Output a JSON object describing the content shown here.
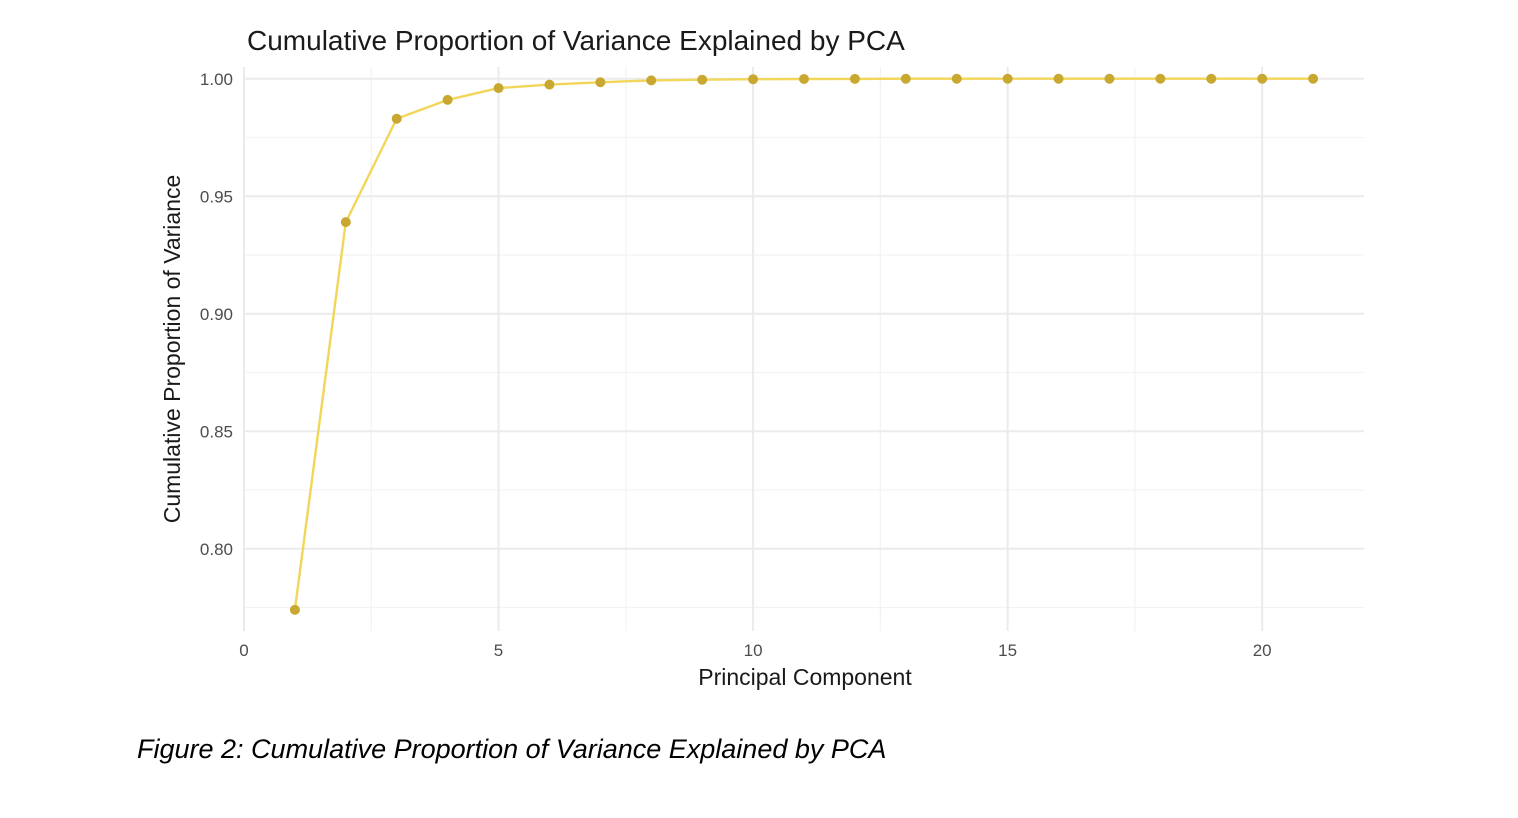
{
  "chart_data": {
    "type": "line",
    "title": "Cumulative Proportion of Variance Explained by PCA",
    "xlabel": "Principal Component",
    "ylabel": "Cumulative Proportion of Variance",
    "xlim": [
      0,
      22
    ],
    "ylim": [
      0.765,
      1.005
    ],
    "x_ticks": [
      0,
      5,
      10,
      15,
      20
    ],
    "x_tick_labels": [
      "0",
      "5",
      "10",
      "15",
      "20"
    ],
    "y_ticks": [
      0.8,
      0.85,
      0.9,
      0.95,
      1.0
    ],
    "y_tick_labels": [
      "0.80",
      "0.85",
      "0.90",
      "0.95",
      "1.00"
    ],
    "grid": true,
    "legend": "none",
    "series": [
      {
        "x": [
          1,
          2,
          3,
          4,
          5,
          6,
          7,
          8,
          9,
          10,
          11,
          12,
          13,
          14,
          15,
          16,
          17,
          18,
          19,
          20,
          21
        ],
        "values": [
          0.774,
          0.939,
          0.983,
          0.991,
          0.996,
          0.9975,
          0.9985,
          0.9993,
          0.9996,
          0.9998,
          0.9999,
          0.99995,
          1.0,
          1.0,
          1.0,
          1.0,
          1.0,
          1.0,
          1.0,
          1.0,
          1.0
        ]
      }
    ],
    "colors": {
      "line": "#f2d65a",
      "points": "#c9a832",
      "grid_major": "#ebebeb",
      "grid_minor": "#f3f3f3"
    }
  },
  "caption": "Figure 2: Cumulative Proportion of Variance Explained by PCA"
}
